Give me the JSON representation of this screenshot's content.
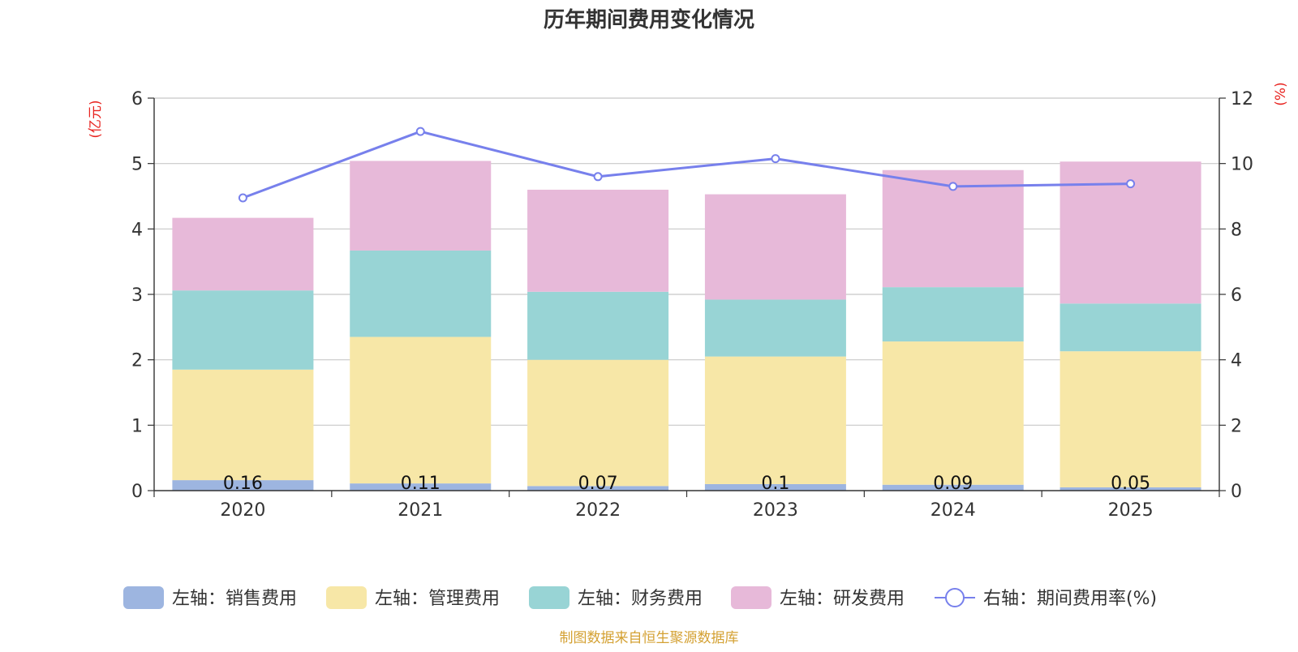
{
  "chart_data": {
    "type": "bar",
    "stacked": true,
    "title": "历年期间费用变化情况",
    "categories": [
      "2020",
      "2021",
      "2022",
      "2023",
      "2024",
      "2025"
    ],
    "y_left": {
      "label": "(亿元)",
      "range": [
        0,
        6
      ],
      "ticks": [
        "0",
        "1",
        "2",
        "3",
        "4",
        "5",
        "6"
      ]
    },
    "y_right": {
      "label": "(%)",
      "range": [
        0,
        12
      ],
      "ticks": [
        "0",
        "2",
        "4",
        "6",
        "8",
        "10",
        "12"
      ]
    },
    "series": [
      {
        "name": "左轴：销售费用",
        "axis": "left",
        "kind": "bar",
        "color": "#9db5e0",
        "values": [
          0.16,
          0.11,
          0.07,
          0.1,
          0.09,
          0.05
        ],
        "labels": [
          "0.16",
          "0.11",
          "0.07",
          "0.1",
          "0.09",
          "0.05"
        ]
      },
      {
        "name": "左轴：管理费用",
        "axis": "left",
        "kind": "bar",
        "color": "#f7e7a7",
        "values": [
          1.69,
          2.24,
          1.93,
          1.95,
          2.19,
          2.08
        ]
      },
      {
        "name": "左轴：财务费用",
        "axis": "left",
        "kind": "bar",
        "color": "#98d4d5",
        "values": [
          1.21,
          1.32,
          1.04,
          0.87,
          0.83,
          0.73
        ]
      },
      {
        "name": "左轴：研发费用",
        "axis": "left",
        "kind": "bar",
        "color": "#e7b9d9",
        "values": [
          1.11,
          1.37,
          1.56,
          1.61,
          1.79,
          2.17
        ]
      },
      {
        "name": "右轴：期间费用率(%)",
        "axis": "right",
        "kind": "line",
        "color": "#7780ec",
        "values": [
          8.95,
          10.98,
          9.6,
          10.15,
          9.3,
          9.38
        ]
      }
    ],
    "grid": true,
    "legend_position": "bottom",
    "source": "制图数据来自恒生聚源数据库"
  }
}
